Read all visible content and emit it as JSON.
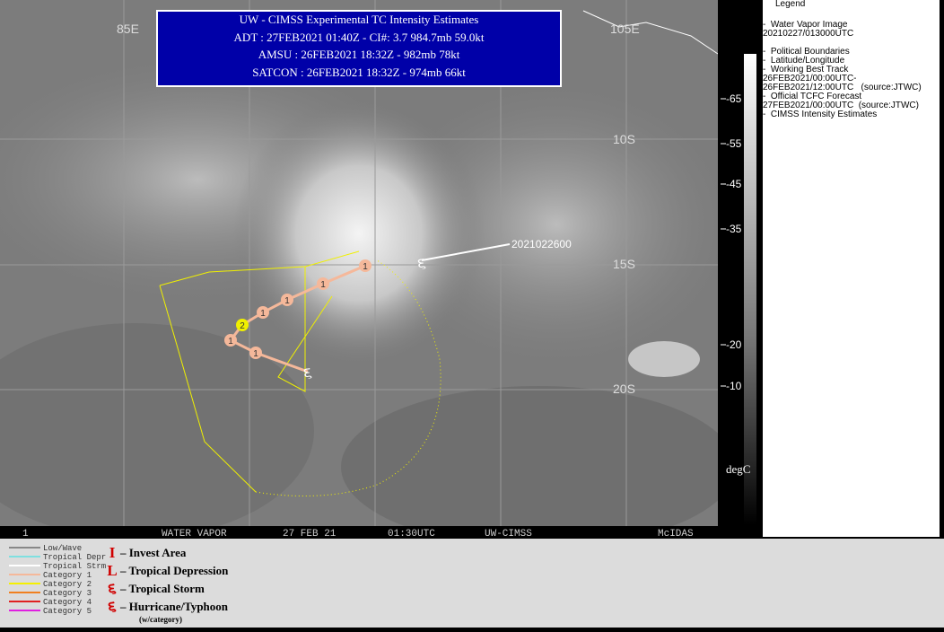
{
  "header": {
    "title": "UW - CIMSS Experimental TC Intensity Estimates",
    "lines": [
      "ADT : 27FEB2021 01:40Z -  CI#: 3.7   984.7mb   59.0kt",
      "AMSU : 26FEB2021 18:32Z -  982mb   78kt",
      "SATCON : 26FEB2021 18:32Z -  974mb   66kt"
    ]
  },
  "map": {
    "lon_labels": [
      "85E",
      "105E"
    ],
    "lat_labels": [
      "10S",
      "15S",
      "20S"
    ],
    "track_time": "2021022600",
    "forecast_labels": [
      "1",
      "1",
      "1",
      "1",
      "2",
      "1",
      "1"
    ]
  },
  "status_bar": [
    "1",
    "WATER VAPOR",
    "27 FEB 21",
    "01:30UTC",
    "UW-CIMSS",
    "McIDAS"
  ],
  "colorbar": {
    "ticks": [
      "-65",
      "-55",
      "-45",
      "-35",
      "-20",
      "-10"
    ],
    "unit": "degC"
  },
  "legend": {
    "title": "Legend",
    "items": [
      "-  Water Vapor Image",
      "20210227/013000UTC",
      "",
      "-  Political Boundaries",
      "-  Latitude/Longitude",
      "-  Working Best Track",
      "26FEB2021/00:00UTC-",
      "26FEB2021/12:00UTC   (source:JTWC)",
      "-  Official TCFC Forecast",
      "27FEB2021/00:00UTC  (source:JTWC)",
      "-  CIMSS Intensity Estimates"
    ]
  },
  "key": {
    "lines": [
      {
        "label": "Low/Wave",
        "color": "#888888"
      },
      {
        "label": "Tropical Depr",
        "color": "#7fe0e0"
      },
      {
        "label": "Tropical Strm",
        "color": "#ffffff"
      },
      {
        "label": "Category 1",
        "color": "#f5b89a"
      },
      {
        "label": "Category 2",
        "color": "#f5f000"
      },
      {
        "label": "Category 3",
        "color": "#f08020"
      },
      {
        "label": "Category 4",
        "color": "#e02020"
      },
      {
        "label": "Category 5",
        "color": "#e020e0"
      }
    ],
    "symbols": [
      "– Invest Area",
      "– Tropical Depression",
      "– Tropical Storm",
      "– Hurricane/Typhoon"
    ],
    "note": "(w/category)"
  }
}
